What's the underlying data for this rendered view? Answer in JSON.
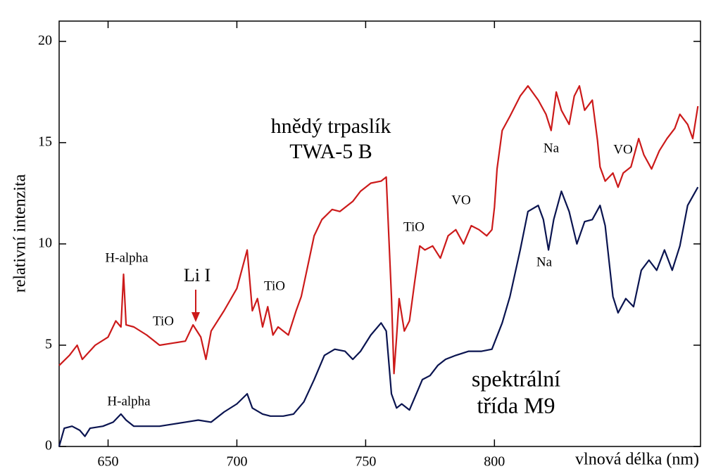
{
  "chart_data": {
    "type": "line",
    "xlabel": "vlnová délka (nm)",
    "ylabel": "relativní intenzita",
    "xlim": [
      631,
      880
    ],
    "ylim": [
      0,
      21
    ],
    "xticks": [
      650,
      700,
      750,
      800
    ],
    "yticks": [
      0,
      5,
      10,
      15,
      20
    ],
    "series": [
      {
        "color": "#cc1a1a",
        "x": [
          631,
          635,
          638,
          640,
          645,
          650,
          653,
          655,
          656,
          657,
          660,
          665,
          670,
          675,
          680,
          683,
          686,
          688,
          690,
          695,
          700,
          704,
          706,
          708,
          710,
          712,
          714,
          716,
          720,
          723,
          725,
          728,
          730,
          733,
          737,
          740,
          745,
          748,
          752,
          756,
          758,
          760,
          761,
          762,
          763,
          765,
          767,
          769,
          771,
          773,
          776,
          779,
          782,
          785,
          788,
          791,
          794,
          797,
          799,
          800,
          801,
          803,
          806,
          810,
          813,
          817,
          820,
          822,
          824,
          826,
          829,
          831,
          833,
          835,
          838,
          840,
          841,
          843,
          846,
          848,
          850,
          853,
          856,
          858,
          861,
          864,
          867,
          870,
          872,
          875,
          877,
          879
        ],
        "values": [
          4.0,
          4.5,
          5.0,
          4.3,
          5.0,
          5.4,
          6.2,
          5.9,
          8.5,
          6.0,
          5.9,
          5.5,
          5.0,
          5.1,
          5.2,
          6.0,
          5.4,
          4.3,
          5.7,
          6.7,
          7.8,
          9.7,
          6.7,
          7.3,
          5.9,
          6.9,
          5.5,
          5.9,
          5.5,
          6.7,
          7.4,
          9.2,
          10.4,
          11.2,
          11.7,
          11.6,
          12.1,
          12.6,
          13.0,
          13.1,
          13.3,
          7.4,
          3.6,
          5.4,
          7.3,
          5.7,
          6.2,
          8.1,
          9.9,
          9.7,
          9.9,
          9.3,
          10.4,
          10.7,
          10.0,
          10.9,
          10.7,
          10.4,
          10.7,
          11.8,
          13.7,
          15.6,
          16.3,
          17.3,
          17.8,
          17.1,
          16.4,
          15.6,
          17.5,
          16.6,
          15.9,
          17.3,
          17.8,
          16.6,
          17.1,
          15.1,
          13.8,
          13.1,
          13.5,
          12.8,
          13.5,
          13.8,
          15.2,
          14.4,
          13.7,
          14.6,
          15.2,
          15.7,
          16.4,
          15.9,
          15.2,
          16.8
        ]
      },
      {
        "color": "#0a1450",
        "x": [
          631,
          633,
          636,
          639,
          641,
          643,
          648,
          652,
          655,
          657,
          660,
          665,
          670,
          675,
          680,
          685,
          690,
          695,
          700,
          704,
          706,
          710,
          713,
          718,
          722,
          726,
          730,
          734,
          738,
          742,
          745,
          748,
          752,
          756,
          758,
          760,
          762,
          764,
          767,
          769,
          772,
          775,
          778,
          781,
          785,
          790,
          795,
          799,
          803,
          806,
          810,
          813,
          817,
          819,
          821,
          823,
          826,
          829,
          832,
          835,
          838,
          841,
          843,
          846,
          848,
          851,
          854,
          857,
          860,
          863,
          866,
          869,
          872,
          875,
          879
        ],
        "values": [
          0,
          0.9,
          1.0,
          0.8,
          0.5,
          0.9,
          1.0,
          1.2,
          1.6,
          1.3,
          1.0,
          1.0,
          1.0,
          1.1,
          1.2,
          1.3,
          1.2,
          1.7,
          2.1,
          2.6,
          1.9,
          1.6,
          1.5,
          1.5,
          1.6,
          2.2,
          3.3,
          4.5,
          4.8,
          4.7,
          4.3,
          4.7,
          5.5,
          6.1,
          5.7,
          2.6,
          1.9,
          2.1,
          1.8,
          2.4,
          3.3,
          3.5,
          4.0,
          4.3,
          4.5,
          4.7,
          4.7,
          4.8,
          6.1,
          7.4,
          9.7,
          11.6,
          11.9,
          11.2,
          9.7,
          11.2,
          12.6,
          11.6,
          10.0,
          11.1,
          11.2,
          11.9,
          10.9,
          7.4,
          6.6,
          7.3,
          6.9,
          8.7,
          9.2,
          8.7,
          9.7,
          8.7,
          9.9,
          11.9,
          12.8
        ]
      }
    ],
    "annotations": [
      {
        "text": "hnědý trpaslík",
        "color": "#cc1a1a"
      },
      {
        "text": "TWA-5 B",
        "color": "#cc1a1a"
      },
      {
        "text": "H-alpha",
        "color": "#cc1a1a"
      },
      {
        "text": "TiO",
        "color": "#cc1a1a"
      },
      {
        "text": "Li I",
        "color": "#cc1a1a"
      },
      {
        "text": "TiO",
        "color": "#cc1a1a"
      },
      {
        "text": "TiO",
        "color": "#cc1a1a"
      },
      {
        "text": "VO",
        "color": "#cc1a1a"
      },
      {
        "text": "Na",
        "color": "#cc1a1a"
      },
      {
        "text": "VO",
        "color": "#cc1a1a"
      },
      {
        "text": "H-alpha",
        "color": "#0a1450"
      },
      {
        "text": "Na",
        "color": "#0a1450"
      },
      {
        "text": "spektrální",
        "color": "#0a1450"
      },
      {
        "text": "třída M9",
        "color": "#0a1450"
      }
    ]
  }
}
